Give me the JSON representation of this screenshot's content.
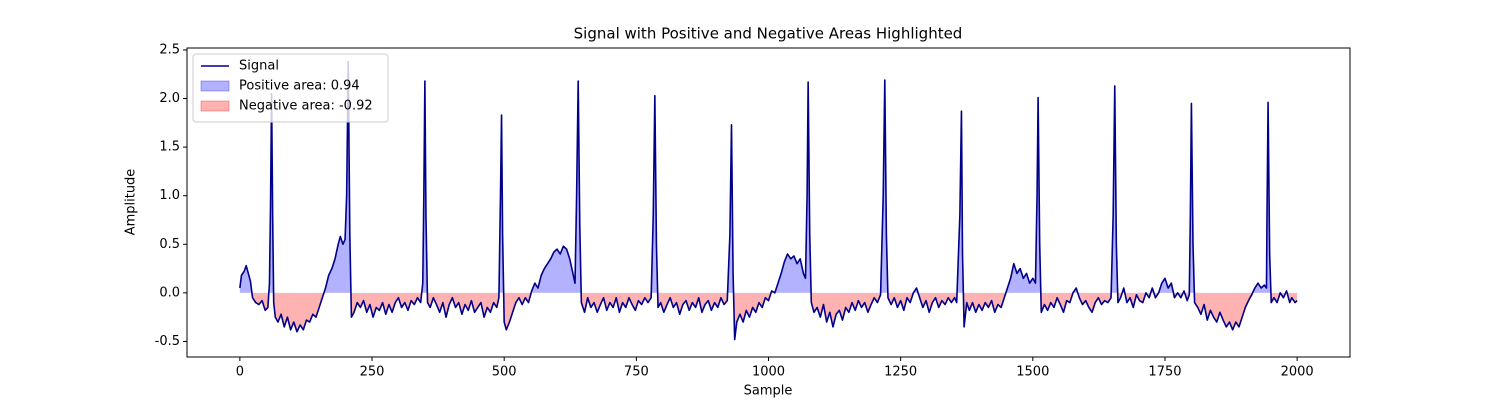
{
  "chart_data": {
    "type": "line",
    "title": "Signal with Positive and Negative Areas Highlighted",
    "xlabel": "Sample",
    "ylabel": "Amplitude",
    "x": [
      0,
      3,
      8,
      12,
      16,
      20,
      24,
      30,
      36,
      42,
      48,
      53,
      56,
      58,
      60,
      62,
      64,
      67,
      72,
      78,
      84,
      90,
      96,
      102,
      108,
      114,
      120,
      126,
      132,
      138,
      144,
      150,
      156,
      162,
      168,
      174,
      180,
      186,
      190,
      195,
      199,
      202,
      205,
      208,
      211,
      216,
      222,
      228,
      234,
      240,
      246,
      252,
      258,
      264,
      270,
      276,
      282,
      288,
      294,
      300,
      306,
      312,
      318,
      324,
      330,
      336,
      342,
      346,
      348,
      350,
      352,
      355,
      360,
      366,
      372,
      378,
      384,
      390,
      396,
      402,
      408,
      414,
      420,
      426,
      432,
      438,
      444,
      450,
      456,
      462,
      468,
      474,
      480,
      486,
      490,
      493,
      495,
      497,
      500,
      504,
      510,
      516,
      522,
      528,
      534,
      540,
      546,
      552,
      558,
      564,
      570,
      576,
      582,
      588,
      594,
      600,
      606,
      612,
      618,
      624,
      630,
      634,
      637,
      640,
      643,
      646,
      652,
      658,
      664,
      670,
      676,
      682,
      688,
      694,
      700,
      706,
      712,
      718,
      724,
      730,
      736,
      742,
      748,
      754,
      760,
      766,
      772,
      778,
      782,
      785,
      788,
      791,
      796,
      802,
      808,
      814,
      820,
      826,
      832,
      838,
      844,
      850,
      856,
      862,
      868,
      874,
      880,
      886,
      892,
      898,
      904,
      910,
      916,
      922,
      927,
      930,
      933,
      936,
      940,
      946,
      952,
      958,
      964,
      970,
      976,
      982,
      988,
      994,
      1000,
      1006,
      1012,
      1018,
      1024,
      1030,
      1036,
      1042,
      1048,
      1054,
      1060,
      1066,
      1070,
      1073,
      1075,
      1078,
      1081,
      1086,
      1092,
      1098,
      1104,
      1110,
      1116,
      1122,
      1128,
      1134,
      1140,
      1146,
      1152,
      1158,
      1164,
      1170,
      1176,
      1182,
      1188,
      1194,
      1200,
      1206,
      1212,
      1217,
      1220,
      1223,
      1226,
      1232,
      1238,
      1244,
      1250,
      1256,
      1262,
      1268,
      1274,
      1280,
      1286,
      1292,
      1298,
      1304,
      1310,
      1316,
      1322,
      1328,
      1334,
      1340,
      1346,
      1352,
      1356,
      1362,
      1365,
      1367,
      1370,
      1375,
      1380,
      1386,
      1392,
      1398,
      1404,
      1410,
      1416,
      1422,
      1428,
      1434,
      1440,
      1446,
      1452,
      1458,
      1464,
      1470,
      1476,
      1482,
      1488,
      1494,
      1500,
      1505,
      1508,
      1510,
      1513,
      1516,
      1522,
      1528,
      1534,
      1540,
      1546,
      1552,
      1558,
      1564,
      1570,
      1576,
      1582,
      1588,
      1594,
      1600,
      1606,
      1612,
      1618,
      1624,
      1630,
      1636,
      1642,
      1648,
      1652,
      1655,
      1658,
      1661,
      1666,
      1672,
      1678,
      1684,
      1690,
      1696,
      1702,
      1708,
      1714,
      1720,
      1726,
      1732,
      1738,
      1744,
      1750,
      1756,
      1762,
      1768,
      1774,
      1780,
      1786,
      1792,
      1796,
      1798,
      1800,
      1803,
      1806,
      1812,
      1818,
      1824,
      1830,
      1836,
      1842,
      1848,
      1854,
      1860,
      1866,
      1872,
      1878,
      1884,
      1890,
      1896,
      1902,
      1908,
      1914,
      1920,
      1926,
      1932,
      1938,
      1942,
      1943,
      1945,
      1948,
      1951,
      1956,
      1962,
      1968,
      1974,
      1980,
      1986,
      1990,
      1996,
      2000
    ],
    "series": [
      {
        "name": "Signal",
        "color": "#00008b",
        "values": [
          0.05,
          0.18,
          0.22,
          0.28,
          0.2,
          0.12,
          -0.05,
          -0.1,
          -0.12,
          -0.08,
          -0.18,
          -0.15,
          0.1,
          0.9,
          2.05,
          0.8,
          -0.1,
          -0.25,
          -0.3,
          -0.22,
          -0.35,
          -0.25,
          -0.38,
          -0.3,
          -0.4,
          -0.33,
          -0.38,
          -0.28,
          -0.3,
          -0.22,
          -0.25,
          -0.15,
          -0.05,
          0.05,
          0.18,
          0.25,
          0.35,
          0.5,
          0.58,
          0.5,
          0.55,
          1.0,
          2.38,
          0.6,
          -0.25,
          -0.2,
          -0.1,
          -0.15,
          -0.08,
          -0.2,
          -0.12,
          -0.25,
          -0.15,
          -0.18,
          -0.1,
          -0.22,
          -0.12,
          -0.2,
          -0.1,
          -0.05,
          -0.15,
          -0.1,
          -0.18,
          -0.08,
          -0.12,
          -0.05,
          -0.1,
          0.1,
          1.0,
          2.18,
          0.8,
          -0.1,
          -0.15,
          -0.05,
          -0.12,
          -0.2,
          -0.1,
          -0.25,
          -0.12,
          -0.05,
          -0.15,
          -0.1,
          -0.22,
          -0.12,
          -0.18,
          -0.08,
          -0.2,
          -0.15,
          -0.1,
          -0.25,
          -0.15,
          -0.2,
          -0.1,
          -0.15,
          -0.05,
          1.0,
          1.83,
          0.6,
          -0.3,
          -0.38,
          -0.3,
          -0.2,
          -0.1,
          -0.05,
          -0.12,
          -0.05,
          -0.1,
          0.02,
          0.1,
          0.05,
          0.18,
          0.25,
          0.3,
          0.35,
          0.42,
          0.45,
          0.4,
          0.48,
          0.45,
          0.35,
          0.2,
          0.1,
          1.0,
          2.18,
          0.7,
          -0.1,
          -0.2,
          -0.05,
          -0.15,
          -0.1,
          -0.2,
          -0.12,
          -0.05,
          -0.18,
          -0.1,
          -0.15,
          -0.05,
          -0.2,
          -0.1,
          -0.15,
          -0.05,
          -0.12,
          -0.18,
          -0.08,
          -0.12,
          -0.05,
          -0.1,
          -0.05,
          0.8,
          2.03,
          0.5,
          -0.15,
          -0.1,
          -0.2,
          -0.12,
          -0.05,
          -0.15,
          -0.1,
          -0.22,
          -0.12,
          -0.08,
          -0.18,
          -0.1,
          -0.15,
          -0.05,
          -0.2,
          -0.12,
          -0.08,
          -0.18,
          -0.1,
          -0.15,
          -0.05,
          -0.12,
          -0.08,
          0.6,
          1.73,
          0.2,
          -0.48,
          -0.3,
          -0.22,
          -0.3,
          -0.18,
          -0.25,
          -0.15,
          -0.2,
          -0.1,
          -0.15,
          -0.05,
          -0.08,
          0.02,
          0.0,
          0.1,
          0.2,
          0.32,
          0.4,
          0.35,
          0.38,
          0.3,
          0.35,
          0.2,
          0.15,
          1.0,
          2.17,
          0.6,
          -0.1,
          -0.2,
          -0.15,
          -0.25,
          -0.12,
          -0.3,
          -0.2,
          -0.35,
          -0.22,
          -0.18,
          -0.28,
          -0.15,
          -0.2,
          -0.1,
          -0.18,
          -0.08,
          -0.15,
          -0.1,
          -0.2,
          -0.12,
          -0.05,
          -0.1,
          -0.02,
          1.0,
          2.19,
          0.6,
          -0.05,
          -0.12,
          -0.05,
          -0.15,
          -0.08,
          -0.18,
          -0.05,
          -0.1,
          0.0,
          0.05,
          -0.05,
          -0.15,
          -0.08,
          -0.2,
          -0.1,
          -0.05,
          -0.15,
          -0.08,
          -0.12,
          -0.05,
          -0.1,
          -0.05,
          -0.1,
          0.8,
          1.87,
          0.4,
          -0.35,
          -0.1,
          -0.18,
          -0.1,
          -0.2,
          -0.12,
          -0.18,
          -0.1,
          -0.15,
          -0.08,
          -0.2,
          -0.12,
          -0.15,
          -0.05,
          0.05,
          0.15,
          0.3,
          0.2,
          0.25,
          0.15,
          0.2,
          0.1,
          0.15,
          0.1,
          1.0,
          2.01,
          0.5,
          -0.2,
          -0.12,
          -0.18,
          -0.1,
          -0.15,
          -0.05,
          -0.12,
          -0.2,
          -0.08,
          -0.1,
          0.0,
          0.05,
          -0.05,
          -0.12,
          -0.08,
          -0.15,
          -0.2,
          -0.1,
          -0.05,
          -0.12,
          -0.08,
          -0.1,
          -0.05,
          0.8,
          2.13,
          0.5,
          -0.1,
          -0.05,
          0.05,
          -0.1,
          -0.05,
          -0.15,
          -0.02,
          -0.08,
          -0.1,
          0.0,
          -0.05,
          0.05,
          -0.05,
          0.0,
          0.1,
          0.15,
          0.05,
          0.1,
          -0.05,
          0.0,
          -0.05,
          0.02,
          -0.08,
          -0.02,
          0.8,
          1.95,
          0.5,
          -0.1,
          -0.15,
          -0.22,
          -0.12,
          -0.28,
          -0.18,
          -0.25,
          -0.3,
          -0.2,
          -0.28,
          -0.35,
          -0.3,
          -0.38,
          -0.3,
          -0.35,
          -0.25,
          -0.15,
          -0.08,
          -0.02,
          0.05,
          0.1,
          0.05,
          0.08,
          0.05,
          0.8,
          1.96,
          0.4,
          -0.1,
          -0.05,
          -0.1,
          0.0,
          -0.05,
          0.02,
          -0.1,
          -0.05,
          -0.1,
          -0.08
        ]
      }
    ],
    "fills": [
      {
        "name": "Positive area: 0.94",
        "color": "#0000ff",
        "side": "positive"
      },
      {
        "name": "Negative area: -0.92",
        "color": "#ff0000",
        "side": "negative"
      }
    ],
    "xlim": [
      -100,
      2100
    ],
    "ylim": [
      -0.66,
      2.52
    ],
    "xticks": [
      0,
      250,
      500,
      750,
      1000,
      1250,
      1500,
      1750,
      2000
    ],
    "yticks": [
      -0.5,
      {
        "value": 0,
        "label": "0.0"
      },
      0.5,
      {
        "value": 1,
        "label": "1.0"
      },
      1.5,
      {
        "value": 2,
        "label": "2.0"
      },
      2.5
    ],
    "grid": false,
    "legend": "upper left"
  }
}
